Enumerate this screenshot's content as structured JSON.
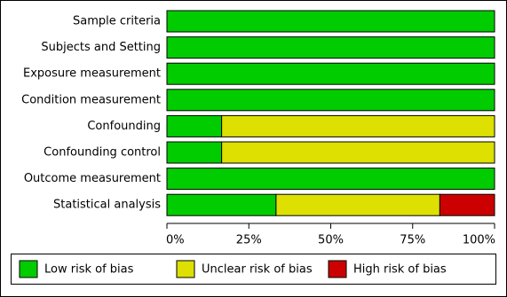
{
  "chart_data": {
    "type": "stacked-bar-horizontal",
    "categories": [
      "Sample criteria",
      "Subjects and Setting",
      "Exposure measurement",
      "Condition measurement",
      "Confounding",
      "Confounding control",
      "Outcome measurement",
      "Statistical analysis"
    ],
    "series": [
      {
        "name": "Low risk of bias",
        "color": "#00cc00",
        "values": [
          100,
          100,
          100,
          100,
          16.7,
          16.7,
          100,
          33.3
        ]
      },
      {
        "name": "Unclear risk of bias",
        "color": "#dde000",
        "values": [
          0,
          0,
          0,
          0,
          83.3,
          83.3,
          0,
          50
        ]
      },
      {
        "name": "High risk of bias",
        "color": "#cc0000",
        "values": [
          0,
          0,
          0,
          0,
          0,
          0,
          0,
          16.7
        ]
      }
    ],
    "xlim": [
      0,
      100
    ],
    "xticks": [
      {
        "value": 0,
        "label": "0%"
      },
      {
        "value": 25,
        "label": "25%"
      },
      {
        "value": 50,
        "label": "50%"
      },
      {
        "value": 75,
        "label": "75%"
      },
      {
        "value": 100,
        "label": "100%"
      }
    ]
  }
}
